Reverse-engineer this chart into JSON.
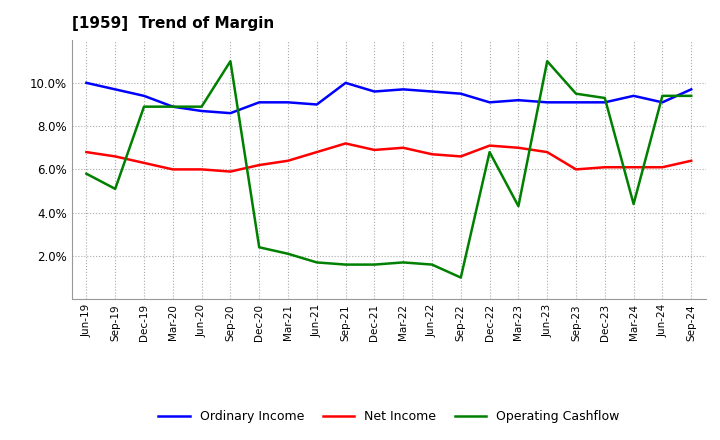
{
  "title": "[1959]  Trend of Margin",
  "x_labels": [
    "Jun-19",
    "Sep-19",
    "Dec-19",
    "Mar-20",
    "Jun-20",
    "Sep-20",
    "Dec-20",
    "Mar-21",
    "Jun-21",
    "Sep-21",
    "Dec-21",
    "Mar-22",
    "Jun-22",
    "Sep-22",
    "Dec-22",
    "Mar-23",
    "Jun-23",
    "Sep-23",
    "Dec-23",
    "Mar-24",
    "Jun-24",
    "Sep-24"
  ],
  "ordinary_income": [
    10.0,
    9.7,
    9.4,
    8.9,
    8.7,
    8.6,
    9.1,
    9.1,
    9.0,
    10.0,
    9.6,
    9.7,
    9.6,
    9.5,
    9.1,
    9.2,
    9.1,
    9.1,
    9.1,
    9.4,
    9.1,
    9.7
  ],
  "net_income": [
    6.8,
    6.6,
    6.3,
    6.0,
    6.0,
    5.9,
    6.2,
    6.4,
    6.8,
    7.2,
    6.9,
    7.0,
    6.7,
    6.6,
    7.1,
    7.0,
    6.8,
    6.0,
    6.1,
    6.1,
    6.1,
    6.4
  ],
  "operating_cashflow": [
    5.8,
    5.1,
    8.9,
    8.9,
    8.9,
    11.0,
    2.4,
    2.1,
    1.7,
    1.6,
    1.6,
    1.7,
    1.6,
    1.0,
    6.8,
    4.3,
    11.0,
    9.5,
    9.3,
    4.4,
    9.4,
    9.4
  ],
  "ylim": [
    0,
    12
  ],
  "yticks": [
    2.0,
    4.0,
    6.0,
    8.0,
    10.0
  ],
  "color_ordinary": "#0000FF",
  "color_net": "#FF0000",
  "color_cashflow": "#008000",
  "legend_labels": [
    "Ordinary Income",
    "Net Income",
    "Operating Cashflow"
  ],
  "background_color": "#FFFFFF",
  "grid_color": "#AAAAAA"
}
